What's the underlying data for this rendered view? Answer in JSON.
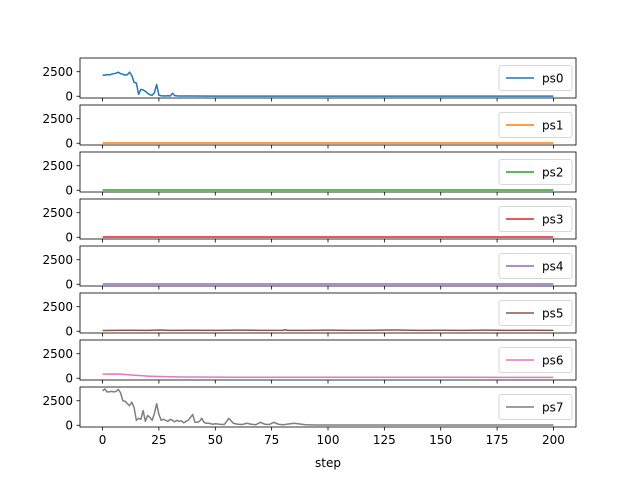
{
  "chart_data": [
    {
      "type": "line",
      "legend": "ps0",
      "color": "#1f77b4",
      "yticks": [
        0,
        2500
      ],
      "ylim": [
        -180,
        3900
      ],
      "x": [
        0,
        1,
        2,
        3,
        4,
        5,
        6,
        7,
        8,
        9,
        10,
        11,
        12,
        13,
        14,
        15,
        16,
        17,
        18,
        19,
        20,
        21,
        22,
        23,
        24,
        25,
        26,
        27,
        28,
        29,
        30,
        31,
        32,
        33,
        34,
        35,
        40,
        50,
        60,
        70,
        80,
        90,
        100,
        110,
        120,
        130,
        140,
        150,
        160,
        170,
        180,
        190,
        200
      ],
      "y": [
        2150,
        2150,
        2200,
        2180,
        2250,
        2300,
        2350,
        2450,
        2300,
        2250,
        2150,
        2200,
        2450,
        2100,
        1400,
        1350,
        200,
        700,
        650,
        500,
        300,
        150,
        100,
        350,
        1200,
        100,
        50,
        40,
        30,
        50,
        20,
        300,
        60,
        40,
        30,
        25,
        20,
        15,
        15,
        15,
        15,
        15,
        15,
        15,
        15,
        15,
        15,
        15,
        15,
        15,
        15,
        15,
        15
      ]
    },
    {
      "type": "line",
      "legend": "ps1",
      "color": "#ff7f0e",
      "yticks": [
        0,
        2500
      ],
      "ylim": [
        -180,
        3900
      ],
      "x": [
        0,
        200
      ],
      "y": [
        25,
        25
      ]
    },
    {
      "type": "line",
      "legend": "ps2",
      "color": "#2ca02c",
      "yticks": [
        0,
        2500
      ],
      "ylim": [
        -180,
        3900
      ],
      "x": [
        0,
        200
      ],
      "y": [
        20,
        20
      ]
    },
    {
      "type": "line",
      "legend": "ps3",
      "color": "#d62728",
      "yticks": [
        0,
        2500
      ],
      "ylim": [
        -180,
        3900
      ],
      "x": [
        0,
        200
      ],
      "y": [
        30,
        30
      ]
    },
    {
      "type": "line",
      "legend": "ps4",
      "color": "#9467bd",
      "yticks": [
        0,
        2500
      ],
      "ylim": [
        -180,
        3900
      ],
      "x": [
        0,
        200
      ],
      "y": [
        25,
        25
      ]
    },
    {
      "type": "line",
      "legend": "ps5",
      "color": "#8c564b",
      "yticks": [
        0,
        2500
      ],
      "ylim": [
        -180,
        3900
      ],
      "x": [
        0,
        10,
        20,
        25,
        30,
        40,
        50,
        60,
        70,
        80,
        81,
        82,
        90,
        100,
        110,
        120,
        130,
        140,
        150,
        160,
        170,
        180,
        190,
        200
      ],
      "y": [
        80,
        100,
        90,
        130,
        90,
        100,
        90,
        110,
        90,
        100,
        150,
        90,
        90,
        110,
        90,
        100,
        120,
        90,
        100,
        90,
        110,
        90,
        100,
        90
      ]
    },
    {
      "type": "line",
      "legend": "ps6",
      "color": "#e377c2",
      "yticks": [
        0,
        2500
      ],
      "ylim": [
        -180,
        3900
      ],
      "x": [
        0,
        5,
        8,
        10,
        12,
        15,
        18,
        20,
        25,
        30,
        35,
        40,
        50,
        60,
        80,
        100,
        120,
        140,
        160,
        180,
        200
      ],
      "y": [
        420,
        430,
        420,
        380,
        340,
        290,
        250,
        220,
        180,
        150,
        130,
        120,
        110,
        105,
        100,
        100,
        95,
        95,
        95,
        90,
        90
      ]
    },
    {
      "type": "line",
      "legend": "ps7",
      "color": "#7f7f7f",
      "xlabel": "step",
      "xticks": [
        0,
        25,
        50,
        75,
        100,
        125,
        150,
        175,
        200
      ],
      "xlim": [
        -10,
        210
      ],
      "yticks": [
        0,
        2500
      ],
      "ylim": [
        -180,
        3900
      ],
      "x": [
        0,
        1,
        2,
        3,
        4,
        5,
        6,
        7,
        8,
        9,
        10,
        11,
        12,
        13,
        14,
        15,
        16,
        17,
        18,
        19,
        20,
        21,
        22,
        23,
        24,
        25,
        26,
        27,
        28,
        29,
        30,
        31,
        32,
        33,
        34,
        35,
        36,
        37,
        38,
        39,
        40,
        41,
        42,
        43,
        44,
        45,
        46,
        47,
        48,
        49,
        50,
        52,
        54,
        56,
        58,
        60,
        62,
        64,
        66,
        68,
        70,
        72,
        74,
        76,
        78,
        80,
        85,
        90,
        95,
        100,
        110,
        120,
        130,
        140,
        150,
        160,
        170,
        180,
        190,
        200
      ],
      "y": [
        3500,
        3700,
        3400,
        3400,
        3450,
        3400,
        3450,
        3650,
        3300,
        2500,
        2450,
        2200,
        2000,
        2350,
        1800,
        500,
        700,
        600,
        1500,
        400,
        1000,
        800,
        500,
        1200,
        2200,
        1100,
        500,
        600,
        500,
        400,
        600,
        500,
        350,
        500,
        400,
        450,
        250,
        400,
        500,
        800,
        1100,
        300,
        300,
        400,
        700,
        300,
        200,
        200,
        150,
        100,
        150,
        100,
        80,
        700,
        200,
        100,
        80,
        200,
        100,
        50,
        300,
        100,
        80,
        300,
        100,
        50,
        200,
        50,
        30,
        20,
        30,
        20,
        20,
        20,
        20,
        20,
        20,
        20,
        20,
        20
      ]
    }
  ]
}
